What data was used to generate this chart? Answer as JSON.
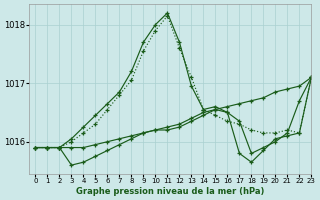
{
  "title": "Graphe pression niveau de la mer (hPa)",
  "background_color": "#cde8e8",
  "grid_color": "#aad0d0",
  "line_color": "#1a5c1a",
  "xlim": [
    -0.5,
    23
  ],
  "ylim": [
    1015.45,
    1018.35
  ],
  "yticks": [
    1016,
    1017,
    1018
  ],
  "xticks": [
    0,
    1,
    2,
    3,
    4,
    5,
    6,
    7,
    8,
    9,
    10,
    11,
    12,
    13,
    14,
    15,
    16,
    17,
    18,
    19,
    20,
    21,
    22,
    23
  ],
  "series": {
    "peak_dotted": {
      "x": [
        0,
        1,
        2,
        3,
        4,
        5,
        6,
        7,
        8,
        9,
        10,
        11,
        12,
        13,
        14,
        15,
        16,
        17,
        18,
        19,
        20,
        21,
        22,
        23
      ],
      "y": [
        1015.9,
        1015.9,
        1015.9,
        1016.0,
        1016.15,
        1016.3,
        1016.55,
        1016.8,
        1017.05,
        1017.55,
        1017.9,
        1018.15,
        1017.6,
        1017.1,
        1016.55,
        1016.45,
        1016.35,
        1016.3,
        1016.2,
        1016.15,
        1016.15,
        1016.2,
        1016.15,
        1017.1
      ],
      "style": "dotted"
    },
    "peak_solid": {
      "x": [
        0,
        1,
        2,
        3,
        4,
        5,
        6,
        7,
        8,
        9,
        10,
        11,
        12,
        13,
        14,
        15,
        16,
        17,
        18,
        19,
        20,
        21,
        22,
        23
      ],
      "y": [
        1015.9,
        1015.9,
        1015.9,
        1016.05,
        1016.25,
        1016.45,
        1016.65,
        1016.85,
        1017.2,
        1017.7,
        1018.0,
        1018.2,
        1017.7,
        1016.95,
        1016.55,
        1016.6,
        1016.5,
        1016.35,
        1015.8,
        1015.9,
        1016.0,
        1016.15,
        1016.7,
        1017.1
      ],
      "style": "solid"
    },
    "slow_rise": {
      "x": [
        0,
        1,
        2,
        3,
        4,
        5,
        6,
        7,
        8,
        9,
        10,
        11,
        12,
        13,
        14,
        15,
        16,
        17,
        18,
        19,
        20,
        21,
        22,
        23
      ],
      "y": [
        1015.9,
        1015.9,
        1015.9,
        1015.9,
        1015.9,
        1015.95,
        1016.0,
        1016.05,
        1016.1,
        1016.15,
        1016.2,
        1016.2,
        1016.25,
        1016.35,
        1016.45,
        1016.55,
        1016.6,
        1016.65,
        1016.7,
        1016.75,
        1016.85,
        1016.9,
        1016.95,
        1017.1
      ],
      "style": "solid"
    },
    "dip_rise": {
      "x": [
        0,
        1,
        2,
        3,
        4,
        5,
        6,
        7,
        8,
        9,
        10,
        11,
        12,
        13,
        14,
        15,
        16,
        17,
        18,
        19,
        20,
        21,
        22,
        23
      ],
      "y": [
        1015.9,
        1015.9,
        1015.9,
        1015.6,
        1015.65,
        1015.75,
        1015.85,
        1015.95,
        1016.05,
        1016.15,
        1016.2,
        1016.25,
        1016.3,
        1016.4,
        1016.5,
        1016.55,
        1016.5,
        1015.8,
        1015.65,
        1015.85,
        1016.05,
        1016.1,
        1016.15,
        1017.1
      ],
      "style": "solid"
    }
  }
}
